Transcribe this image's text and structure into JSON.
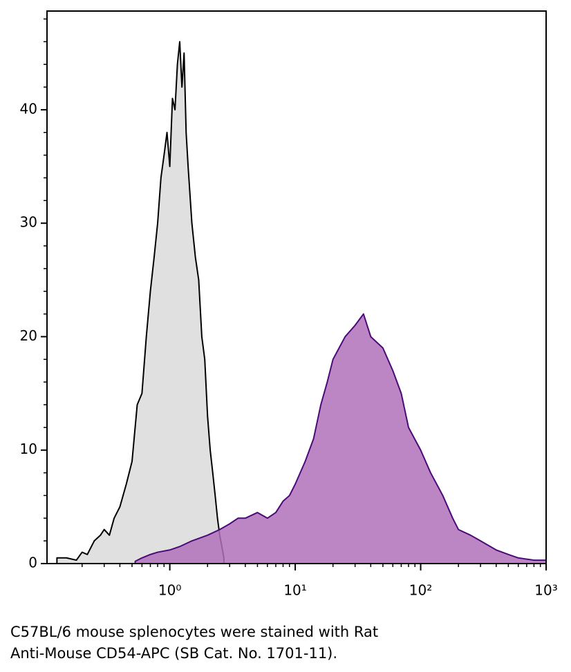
{
  "chart_data": {
    "type": "area",
    "xscale": "log",
    "xlim": [
      0.105,
      1000
    ],
    "ylim": [
      0,
      48.7
    ],
    "xticks": [
      {
        "value": 1,
        "label": "10⁰"
      },
      {
        "value": 10,
        "label": "10¹"
      },
      {
        "value": 100,
        "label": "10²"
      },
      {
        "value": 1000,
        "label": "10³"
      }
    ],
    "yticks": [
      0,
      10,
      20,
      30,
      40
    ],
    "series": [
      {
        "name": null,
        "color": "#000000",
        "fill": "#e0e0e0",
        "x": [
          0.126,
          0.15,
          0.18,
          0.2,
          0.22,
          0.25,
          0.28,
          0.3,
          0.33,
          0.36,
          0.4,
          0.45,
          0.5,
          0.55,
          0.6,
          0.65,
          0.7,
          0.75,
          0.8,
          0.85,
          0.9,
          0.95,
          1.0,
          1.05,
          1.1,
          1.15,
          1.2,
          1.25,
          1.3,
          1.35,
          1.4,
          1.5,
          1.6,
          1.7,
          1.8,
          1.9,
          2.0,
          2.1,
          2.2,
          2.3,
          2.4,
          2.5,
          2.6,
          2.7
        ],
        "values": [
          0.5,
          0.5,
          0.3,
          1,
          0.8,
          2,
          2.5,
          3,
          2.5,
          4,
          5,
          7,
          9,
          14,
          15,
          20,
          24,
          27,
          30,
          34,
          36,
          38,
          35,
          41,
          40,
          44,
          46,
          42,
          45,
          38,
          35,
          30,
          27,
          25,
          20,
          18,
          13,
          10,
          8,
          6,
          4,
          2.5,
          1.5,
          0.5
        ]
      },
      {
        "name": null,
        "color": "#4a0a78",
        "fill": "#b070b8",
        "x": [
          0.53,
          0.6,
          0.7,
          0.8,
          1,
          1.2,
          1.5,
          2,
          2.5,
          3,
          3.5,
          4,
          5,
          6,
          7,
          8,
          9,
          10,
          12,
          14,
          16,
          18,
          20,
          25,
          30,
          35,
          40,
          50,
          60,
          70,
          80,
          100,
          120,
          150,
          180,
          200,
          250,
          300,
          400,
          500,
          600,
          800,
          1000
        ],
        "values": [
          0.2,
          0.5,
          0.8,
          1,
          1.2,
          1.5,
          2,
          2.5,
          3,
          3.5,
          4,
          4,
          4.5,
          4,
          4.5,
          5.5,
          6,
          7,
          9,
          11,
          14,
          16,
          18,
          20,
          21,
          22,
          20,
          19,
          17,
          15,
          12,
          10,
          8,
          6,
          4,
          3,
          2.5,
          2,
          1.2,
          0.8,
          0.5,
          0.3,
          0.3
        ]
      }
    ],
    "caption": [
      "C57BL/6 mouse splenocytes were stained with Rat",
      "Anti-Mouse CD54-APC (SB Cat. No. 1701-11)."
    ]
  }
}
